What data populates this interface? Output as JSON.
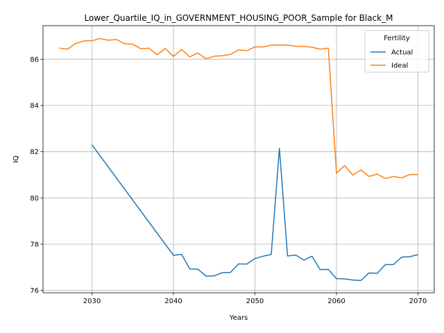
{
  "chart_data": {
    "type": "line",
    "title": "Lower_Quartile_IQ_in_GOVERNMENT_HOUSING_POOR_Sample for Black_M",
    "xlabel": "Years",
    "ylabel": "IQ",
    "xlim": [
      2024,
      2072
    ],
    "ylim": [
      75.9,
      87.45
    ],
    "xticks": [
      2030,
      2040,
      2050,
      2060,
      2070
    ],
    "yticks": [
      76,
      78,
      80,
      82,
      84,
      86
    ],
    "grid": true,
    "legend": {
      "title": "Fertility",
      "placement": "top-right"
    },
    "series": [
      {
        "name": "Actual",
        "color": "#1f77b4",
        "x": [
          2030,
          2040,
          2041,
          2042,
          2043,
          2044,
          2045,
          2046,
          2047,
          2048,
          2049,
          2050,
          2051,
          2052,
          2053,
          2054,
          2055,
          2056,
          2057,
          2058,
          2059,
          2060,
          2061,
          2062,
          2063,
          2064,
          2065,
          2066,
          2067,
          2068,
          2069,
          2070
        ],
        "values": [
          82.3,
          77.52,
          77.56,
          76.93,
          76.92,
          76.62,
          76.63,
          76.77,
          76.78,
          77.15,
          77.14,
          77.38,
          77.48,
          77.56,
          82.15,
          77.49,
          77.53,
          77.31,
          77.48,
          76.9,
          76.91,
          76.51,
          76.5,
          76.45,
          76.43,
          76.76,
          76.74,
          77.12,
          77.12,
          77.44,
          77.46,
          77.55
        ]
      },
      {
        "name": "Ideal",
        "color": "#ff7f0e",
        "x": [
          2026,
          2027,
          2028,
          2029,
          2030,
          2031,
          2032,
          2033,
          2034,
          2035,
          2036,
          2037,
          2038,
          2039,
          2040,
          2041,
          2042,
          2043,
          2044,
          2045,
          2046,
          2047,
          2048,
          2049,
          2050,
          2051,
          2052,
          2053,
          2054,
          2055,
          2056,
          2057,
          2058,
          2059,
          2060,
          2061,
          2062,
          2063,
          2064,
          2065,
          2066,
          2067,
          2068,
          2069,
          2070
        ],
        "values": [
          86.48,
          86.43,
          86.68,
          86.79,
          86.8,
          86.89,
          86.82,
          86.85,
          86.67,
          86.65,
          86.45,
          86.48,
          86.19,
          86.46,
          86.12,
          86.42,
          86.1,
          86.27,
          86.02,
          86.13,
          86.15,
          86.21,
          86.4,
          86.37,
          86.53,
          86.53,
          86.61,
          86.61,
          86.61,
          86.56,
          86.55,
          86.52,
          86.43,
          86.48,
          81.07,
          81.4,
          80.99,
          81.21,
          80.93,
          81.03,
          80.84,
          80.93,
          80.87,
          81.01,
          81.01
        ]
      }
    ]
  }
}
